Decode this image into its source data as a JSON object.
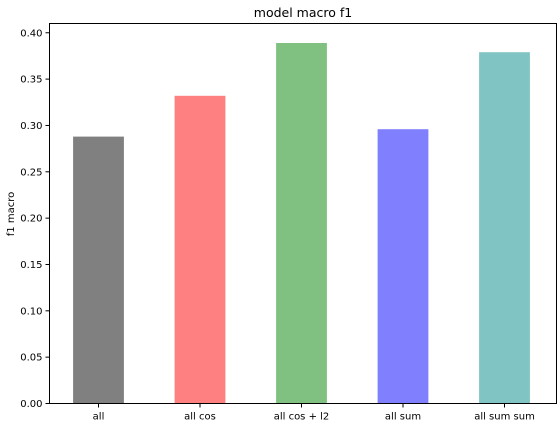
{
  "chart_data": {
    "type": "bar",
    "title": "model macro f1",
    "xlabel": "",
    "ylabel": "f1 macro",
    "categories": [
      "all",
      "all cos",
      "all cos + l2",
      "all sum",
      "all sum sum"
    ],
    "values": [
      0.288,
      0.332,
      0.389,
      0.296,
      0.379
    ],
    "colors": [
      "#808080",
      "#ff8080",
      "#80c080",
      "#8080ff",
      "#80c4c4"
    ],
    "ylim": [
      0,
      0.41
    ],
    "yticks": [
      "0.00",
      "0.05",
      "0.10",
      "0.15",
      "0.20",
      "0.25",
      "0.30",
      "0.35",
      "0.40"
    ],
    "grid": false,
    "legend": null
  }
}
